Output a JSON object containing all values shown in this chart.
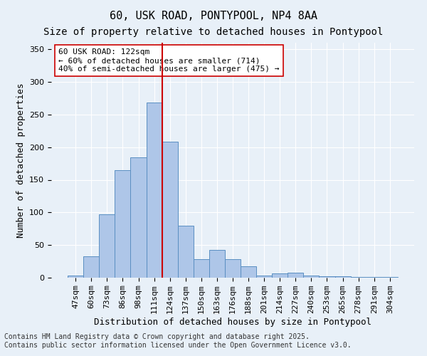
{
  "title1": "60, USK ROAD, PONTYPOOL, NP4 8AA",
  "title2": "Size of property relative to detached houses in Pontypool",
  "xlabel": "Distribution of detached houses by size in Pontypool",
  "ylabel": "Number of detached properties",
  "categories": [
    "47sqm",
    "60sqm",
    "73sqm",
    "86sqm",
    "98sqm",
    "111sqm",
    "124sqm",
    "137sqm",
    "150sqm",
    "163sqm",
    "176sqm",
    "188sqm",
    "201sqm",
    "214sqm",
    "227sqm",
    "240sqm",
    "253sqm",
    "265sqm",
    "278sqm",
    "291sqm",
    "304sqm"
  ],
  "values": [
    3,
    33,
    97,
    165,
    184,
    268,
    208,
    80,
    28,
    43,
    28,
    18,
    3,
    7,
    8,
    3,
    2,
    2,
    1,
    1,
    1
  ],
  "bar_color": "#aec6e8",
  "bar_edge_color": "#5a8fc2",
  "vline_x": 5.7,
  "vline_color": "#cc0000",
  "annotation_text": "60 USK ROAD: 122sqm\n← 60% of detached houses are smaller (714)\n40% of semi-detached houses are larger (475) →",
  "annotation_box_color": "#ffffff",
  "annotation_edge_color": "#cc0000",
  "ylim": [
    0,
    360
  ],
  "yticks": [
    0,
    50,
    100,
    150,
    200,
    250,
    300,
    350
  ],
  "bg_color": "#e8f0f8",
  "plot_bg_color": "#e8f0f8",
  "footer_text": "Contains HM Land Registry data © Crown copyright and database right 2025.\nContains public sector information licensed under the Open Government Licence v3.0.",
  "title1_fontsize": 11,
  "title2_fontsize": 10,
  "xlabel_fontsize": 9,
  "ylabel_fontsize": 9,
  "tick_fontsize": 8,
  "annotation_fontsize": 8,
  "footer_fontsize": 7
}
